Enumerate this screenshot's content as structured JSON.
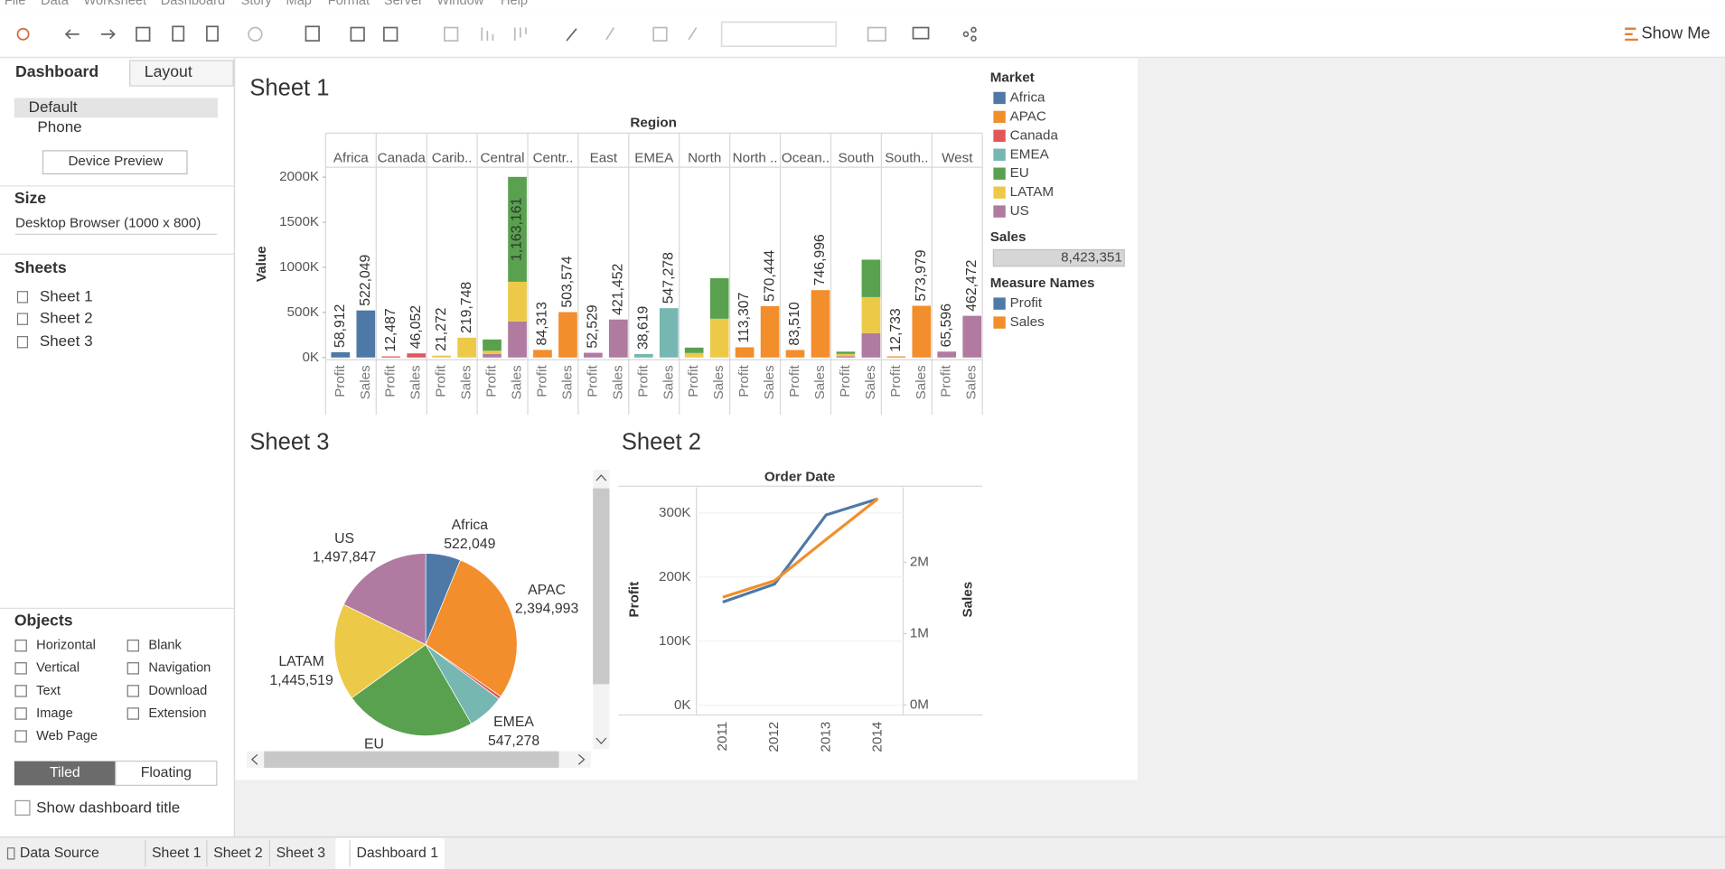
{
  "menu": [
    "File",
    "Data",
    "Worksheet",
    "Dashboard",
    "Story",
    "Map",
    "Format",
    "Server",
    "Window",
    "Help"
  ],
  "toolbar": {
    "show_me": "Show Me"
  },
  "side_panel": {
    "tabs": [
      "Dashboard",
      "Layout"
    ],
    "devices": [
      "Default",
      "Phone"
    ],
    "device_preview": "Device Preview",
    "size_title": "Size",
    "size": "Desktop Browser (1000 x 800)",
    "sheets_title": "Sheets",
    "sheets": [
      "Sheet 1",
      "Sheet 2",
      "Sheet 3"
    ],
    "objects_title": "Objects",
    "objects": [
      "Horizontal",
      "Blank",
      "Vertical",
      "Navigation",
      "Text",
      "Download",
      "Image",
      "Extension",
      "Web Page"
    ],
    "layout_modes": [
      "Tiled",
      "Floating"
    ],
    "show_title": "Show dashboard title"
  },
  "bottom_tabs": [
    "Data Source",
    "Sheet 1",
    "Sheet 2",
    "Sheet 3",
    "Dashboard 1"
  ],
  "legends": {
    "market_title": "Market",
    "sales_title": "Sales",
    "sales_total": "8,423,351",
    "measure_title": "Measure Names"
  },
  "chart_data": [
    {
      "type": "bar",
      "title": "Sheet 1",
      "header": "Region",
      "y_label": "Value",
      "categories": [
        "Africa",
        "Canada",
        "Carib..",
        "Central",
        "Centr..",
        "East",
        "EMEA",
        "North",
        "North ..",
        "Ocean..",
        "South",
        "South..",
        "West"
      ],
      "measures": [
        "Profit",
        "Sales"
      ],
      "stacked": true,
      "ylim": [
        0,
        2110000
      ],
      "yticks": [
        {
          "value": 0,
          "label": "0K"
        },
        {
          "value": 500000,
          "label": "500K"
        },
        {
          "value": 1000000,
          "label": "1000K"
        },
        {
          "value": 1500000,
          "label": "1500K"
        },
        {
          "value": 2000000,
          "label": "2000K"
        }
      ],
      "series": [
        {
          "name": "Africa",
          "color": "#4e79a7",
          "profit": {
            "values": [
              58912,
              null,
              null,
              null,
              null,
              null,
              null,
              null,
              null,
              null,
              null,
              null,
              null
            ],
            "value_labels": [
              "58,912",
              null,
              null,
              null,
              null,
              null,
              null,
              null,
              null,
              null,
              null,
              null,
              null
            ]
          },
          "sales": {
            "values": [
              522049,
              null,
              null,
              null,
              null,
              null,
              null,
              null,
              null,
              null,
              null,
              null,
              null
            ],
            "value_labels": [
              "522,049",
              null,
              null,
              null,
              null,
              null,
              null,
              null,
              null,
              null,
              null,
              null,
              null
            ]
          }
        },
        {
          "name": "APAC",
          "color": "#f28e2b",
          "profit": {
            "values": [
              null,
              null,
              null,
              null,
              84313,
              null,
              null,
              null,
              113307,
              83510,
              null,
              12733,
              null
            ],
            "value_labels": [
              null,
              null,
              null,
              null,
              "84,313",
              null,
              null,
              null,
              "113,307",
              "83,510",
              null,
              "12,733",
              null
            ]
          },
          "sales": {
            "values": [
              null,
              null,
              null,
              null,
              503574,
              null,
              null,
              null,
              570444,
              746996,
              null,
              573979,
              null
            ],
            "value_labels": [
              null,
              null,
              null,
              null,
              "503,574",
              null,
              null,
              null,
              "570,444",
              "746,996",
              null,
              "573,979",
              null
            ]
          }
        },
        {
          "name": "Canada",
          "color": "#e15759",
          "profit": {
            "values": [
              null,
              12487,
              null,
              null,
              null,
              null,
              null,
              null,
              null,
              null,
              null,
              null,
              null
            ],
            "value_labels": [
              null,
              "12,487",
              null,
              null,
              null,
              null,
              null,
              null,
              null,
              null,
              null,
              null,
              null
            ]
          },
          "sales": {
            "values": [
              null,
              46052,
              null,
              null,
              null,
              null,
              null,
              null,
              null,
              null,
              null,
              null,
              null
            ],
            "value_labels": [
              null,
              "46,052",
              null,
              null,
              null,
              null,
              null,
              null,
              null,
              null,
              null,
              null,
              null
            ]
          }
        },
        {
          "name": "EMEA",
          "color": "#76b7b2",
          "profit": {
            "values": [
              null,
              null,
              null,
              null,
              null,
              null,
              38619,
              null,
              null,
              null,
              null,
              null,
              null
            ],
            "value_labels": [
              null,
              null,
              null,
              null,
              null,
              null,
              "38,619",
              null,
              null,
              null,
              null,
              null,
              null
            ]
          },
          "sales": {
            "values": [
              null,
              null,
              null,
              null,
              null,
              null,
              547278,
              null,
              null,
              null,
              null,
              null,
              null
            ],
            "value_labels": [
              null,
              null,
              null,
              null,
              null,
              null,
              "547,278",
              null,
              null,
              null,
              null,
              null,
              null
            ]
          }
        },
        {
          "name": "EU",
          "color": "#59a14f",
          "profit": {
            "values": [
              null,
              null,
              null,
              125000,
              null,
              null,
              null,
              60000,
              null,
              null,
              25000,
              null,
              null
            ],
            "value_labels": [
              null,
              null,
              null,
              null,
              null,
              null,
              null,
              null,
              null,
              null,
              null,
              null,
              null
            ]
          },
          "sales": {
            "values": [
              null,
              null,
              null,
              1163161,
              null,
              null,
              null,
              450000,
              null,
              null,
              415000,
              null,
              null
            ],
            "value_labels": [
              null,
              null,
              null,
              "1,163,161",
              null,
              null,
              null,
              null,
              null,
              null,
              null,
              null,
              null
            ]
          }
        },
        {
          "name": "LATAM",
          "color": "#edc948",
          "profit": {
            "values": [
              null,
              null,
              21272,
              35000,
              null,
              null,
              null,
              50000,
              null,
              null,
              25000,
              null,
              null
            ],
            "value_labels": [
              null,
              null,
              "21,272",
              null,
              null,
              null,
              null,
              null,
              null,
              null,
              null,
              null,
              null
            ]
          },
          "sales": {
            "values": [
              null,
              null,
              219748,
              440000,
              null,
              null,
              null,
              430000,
              null,
              null,
              400000,
              null,
              null
            ],
            "value_labels": [
              null,
              null,
              "219,748",
              null,
              null,
              null,
              null,
              null,
              null,
              null,
              null,
              null,
              null
            ]
          }
        },
        {
          "name": "US",
          "color": "#b07aa1",
          "profit": {
            "values": [
              null,
              null,
              null,
              40000,
              null,
              52529,
              null,
              null,
              null,
              null,
              15000,
              null,
              65596
            ],
            "value_labels": [
              null,
              null,
              null,
              null,
              null,
              "52,529",
              null,
              null,
              null,
              null,
              null,
              null,
              "65,596"
            ]
          },
          "sales": {
            "values": [
              null,
              null,
              null,
              400000,
              null,
              421452,
              null,
              null,
              null,
              null,
              270000,
              null,
              462472
            ],
            "value_labels": [
              null,
              null,
              null,
              null,
              null,
              "421,452",
              null,
              null,
              null,
              null,
              null,
              null,
              "462,472"
            ]
          }
        }
      ]
    },
    {
      "type": "line",
      "title": "Sheet 2",
      "header": "Order Date",
      "y_label": "Profit",
      "y2_label": "Sales",
      "categories": [
        "2011",
        "2012",
        "2013",
        "2014"
      ],
      "grid": true,
      "ylim": [
        -15000,
        340000
      ],
      "yticks": [
        {
          "value": 0,
          "label": "0K"
        },
        {
          "value": 100000,
          "label": "100K"
        },
        {
          "value": 200000,
          "label": "200K"
        },
        {
          "value": 300000,
          "label": "300K"
        }
      ],
      "y2lim": [
        -140000,
        3050000
      ],
      "y2ticks": [
        {
          "value": 0,
          "label": "0M"
        },
        {
          "value": 1000000,
          "label": "1M"
        },
        {
          "value": 2000000,
          "label": "2M"
        }
      ],
      "series": [
        {
          "name": "Profit",
          "color": "#4e79a7",
          "values": [
            161000,
            189000,
            297000,
            322000
          ]
        },
        {
          "name": "Sales",
          "color": "#f28e2b",
          "axis": "y2",
          "values": [
            1510000,
            1740000,
            2320000,
            2890000
          ]
        }
      ]
    },
    {
      "type": "pie",
      "title": "Sheet 3",
      "categories": [
        "Africa",
        "APAC",
        null,
        "EMEA",
        "EU",
        "LATAM",
        "US"
      ],
      "values": [
        522049,
        2394993,
        46052,
        547278,
        1969613,
        1445519,
        1497847
      ],
      "value_labels": [
        "522,049",
        "2,394,993",
        null,
        "547,278",
        null,
        "1,445,519",
        "1,497,847"
      ],
      "colors": [
        "#4e79a7",
        "#f28e2b",
        "#e15759",
        "#76b7b2",
        "#59a14f",
        "#edc948",
        "#b07aa1"
      ]
    }
  ]
}
